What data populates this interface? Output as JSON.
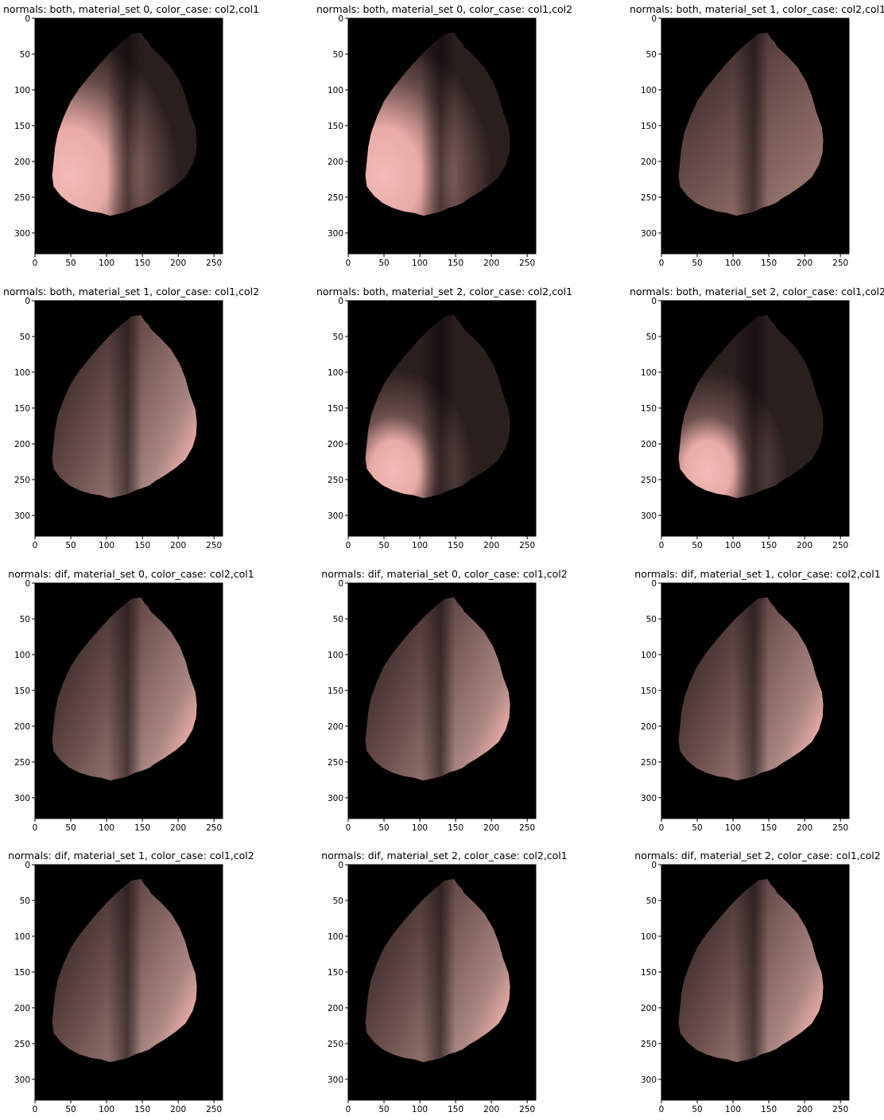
{
  "figure": {
    "image_shape": {
      "height": 329,
      "width": 262
    },
    "x_ticks": [
      0,
      50,
      100,
      150,
      200,
      250
    ],
    "y_ticks": [
      0,
      50,
      100,
      150,
      200,
      250,
      300
    ],
    "panels": [
      {
        "title": "normals: both, material_set 0, color_case: col2,col1",
        "variant": "bright-left"
      },
      {
        "title": "normals: both, material_set 0, color_case: col1,col2",
        "variant": "bright-left"
      },
      {
        "title": "normals: both, material_set 1, color_case: col2,col1",
        "variant": "uniform"
      },
      {
        "title": "normals: both, material_set 1, color_case: col1,col2",
        "variant": "bright-right"
      },
      {
        "title": "normals: both, material_set 2, color_case: col2,col1",
        "variant": "spot-lower-left"
      },
      {
        "title": "normals: both, material_set 2, color_case: col1,col2",
        "variant": "spot-lower-left"
      },
      {
        "title": "normals: dif, material_set 0, color_case: col2,col1",
        "variant": "bright-right"
      },
      {
        "title": "normals: dif, material_set 0, color_case: col1,col2",
        "variant": "bright-right"
      },
      {
        "title": "normals: dif, material_set 1, color_case: col2,col1",
        "variant": "bright-right"
      },
      {
        "title": "normals: dif, material_set 1, color_case: col1,col2",
        "variant": "bright-right"
      },
      {
        "title": "normals: dif, material_set 2, color_case: col2,col1",
        "variant": "bright-right"
      },
      {
        "title": "normals: dif, material_set 2, color_case: col1,col2",
        "variant": "bright-right"
      }
    ]
  },
  "colors": {
    "background": "#000000",
    "dark": "#2b1f1e",
    "mid": "#6b4f4c",
    "bright": "#e8aaa6",
    "spot": "#f2bcb8"
  }
}
